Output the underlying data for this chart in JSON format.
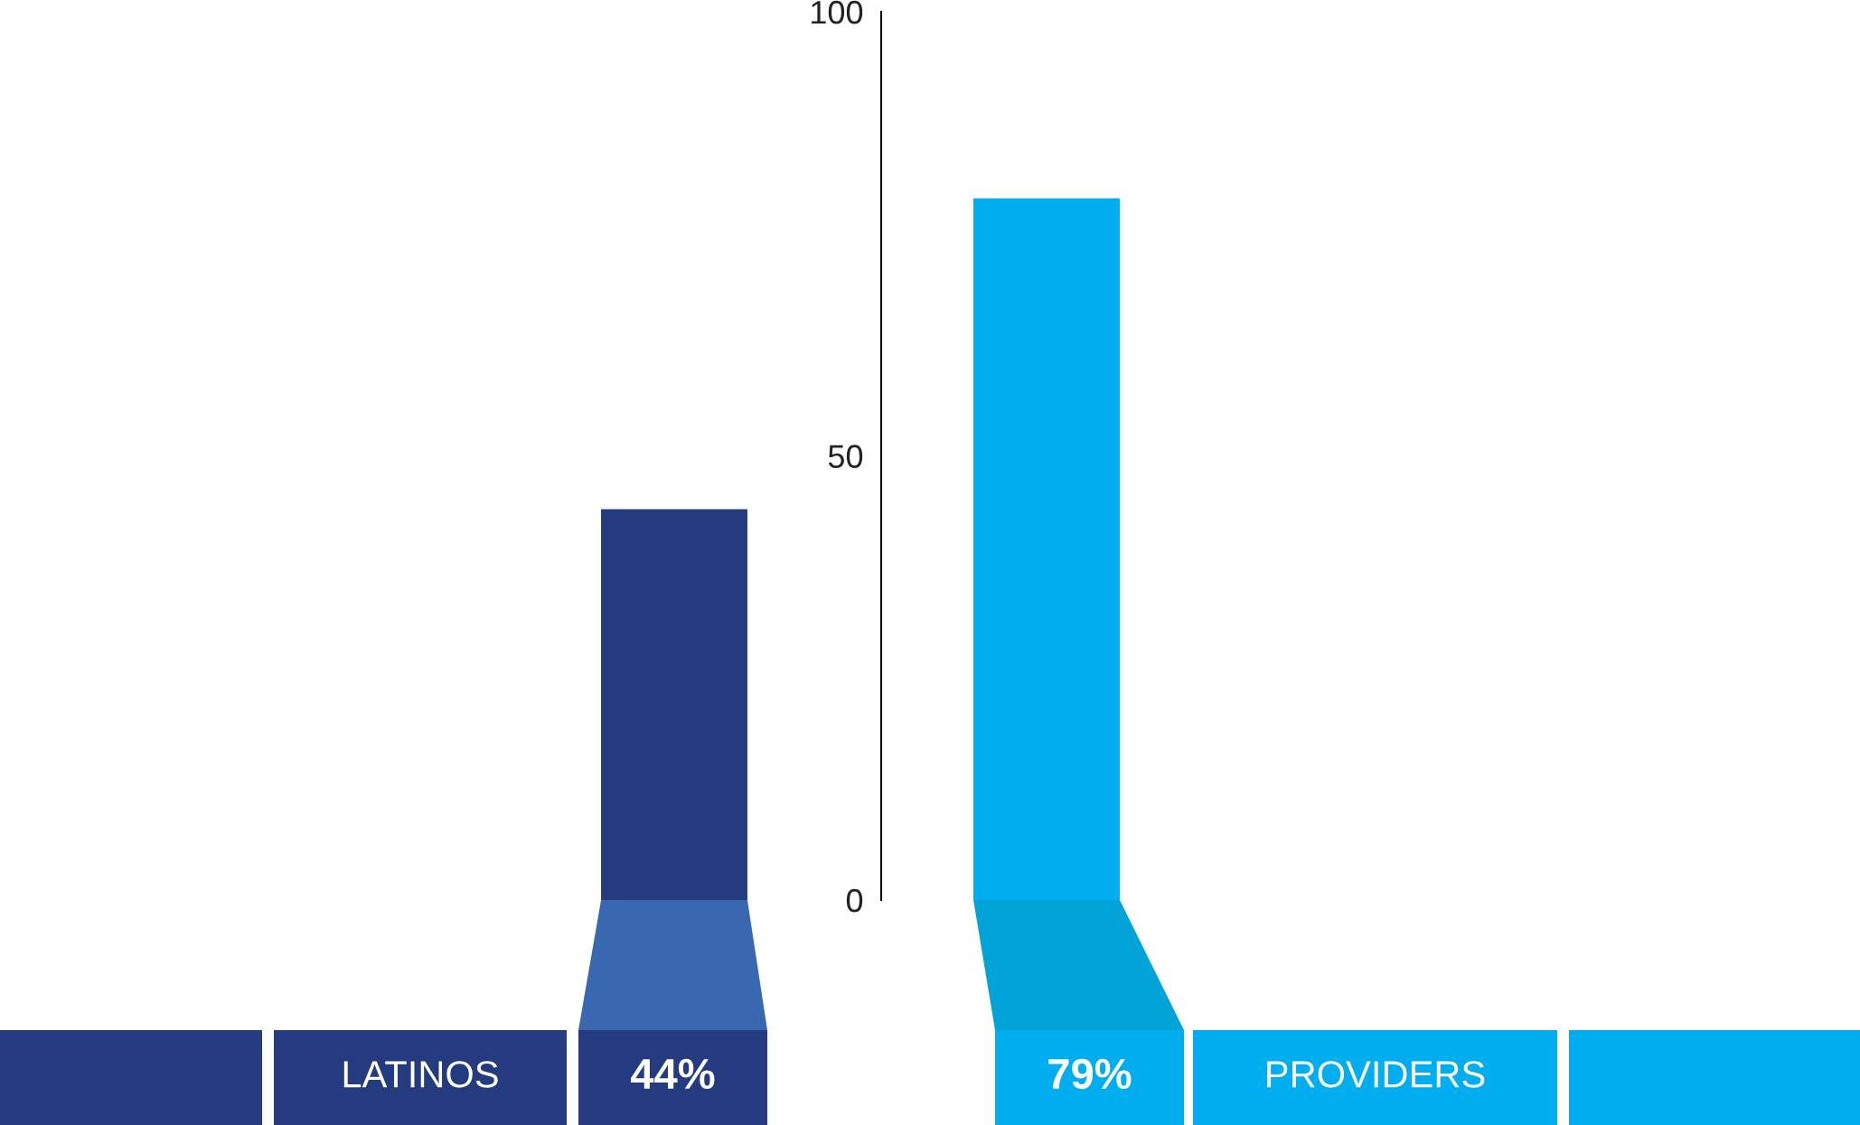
{
  "chart_data": {
    "type": "bar",
    "categories": [
      "LATINOS",
      "PROVIDERS"
    ],
    "values": [
      44,
      79
    ],
    "colors": [
      "#253b80",
      "#00aeef"
    ],
    "value_labels": [
      "44%",
      "79%"
    ],
    "ylim": [
      0,
      100
    ],
    "yticks": [
      0,
      50,
      100
    ]
  }
}
